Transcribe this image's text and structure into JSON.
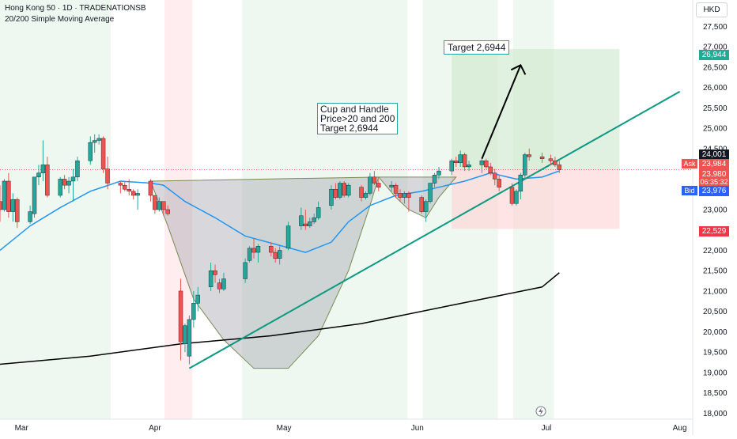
{
  "header": {
    "title": "Hong Kong 50 · 1D · TRADENATIONSB",
    "subtitle": "20/200 Simple Moving Average"
  },
  "currency": "HKD",
  "annotations": {
    "pattern_note": "Cup and Handle\nPrice>20 and 200\nTarget 2,6944",
    "target_note": "Target 2,6944"
  },
  "price_scale": {
    "target_label": "26,944",
    "high_label": "24,001",
    "ask_tag": "Ask",
    "ask_value": "23,984",
    "last_value": "23,980",
    "countdown": "06:35:32",
    "bid_tag": "Bid",
    "bid_value": "23,976",
    "stop_label": "22,529"
  },
  "colors": {
    "up": "#26a69a",
    "down": "#ef5350",
    "sma20": "#2196f3",
    "sma200": "#000000",
    "trendline": "#089981",
    "green_zone": "#e8f5e9",
    "red_zone": "#ffebee"
  },
  "chart_data": {
    "type": "candlestick",
    "title": "Hong Kong 50 · 1D · TRADENATIONSB",
    "subtitle": "20/200 Simple Moving Average",
    "x_ticks": [
      "Mar",
      "Apr",
      "May",
      "Jun",
      "Jul",
      "Aug"
    ],
    "y_ticks": [
      "18,000",
      "18,500",
      "19,000",
      "19,500",
      "20,000",
      "20,500",
      "21,000",
      "21,500",
      "22,000",
      "22,500",
      "23,000",
      "23,500",
      "24,000",
      "24,500",
      "25,000",
      "25,500",
      "26,000",
      "26,500",
      "27,000",
      "27,500"
    ],
    "ylim": [
      17850,
      28150
    ],
    "xlim": [
      "2025-02-24",
      "2025-08-04"
    ],
    "candles": [
      [
        "2025-02-24",
        23200,
        23600,
        22700,
        23000
      ],
      [
        "2025-02-25",
        23000,
        23750,
        22950,
        23700
      ],
      [
        "2025-02-26",
        23700,
        23900,
        22800,
        22950
      ],
      [
        "2025-02-27",
        22950,
        23400,
        22700,
        23250
      ],
      [
        "2025-02-28",
        23250,
        23300,
        22550,
        22700
      ],
      [
        "2025-03-03",
        22700,
        23100,
        22650,
        22950
      ],
      [
        "2025-03-04",
        22900,
        23800,
        22800,
        23800
      ],
      [
        "2025-03-05",
        23800,
        24100,
        23600,
        23900
      ],
      [
        "2025-03-06",
        23900,
        24700,
        23700,
        24100
      ],
      [
        "2025-03-07",
        24100,
        24300,
        23300,
        23350
      ],
      [
        "2025-03-10",
        23350,
        23800,
        23300,
        23750
      ],
      [
        "2025-03-11",
        23750,
        23850,
        23500,
        23600
      ],
      [
        "2025-03-12",
        23600,
        23800,
        23400,
        23700
      ],
      [
        "2025-03-13",
        23700,
        24000,
        23200,
        23800
      ],
      [
        "2025-03-14",
        23800,
        24300,
        23700,
        24200
      ],
      [
        "2025-03-17",
        24200,
        24800,
        24100,
        24650
      ],
      [
        "2025-03-18",
        24650,
        24850,
        24400,
        24700
      ],
      [
        "2025-03-19",
        24700,
        24850,
        24600,
        24750
      ],
      [
        "2025-03-20",
        24750,
        24800,
        23900,
        24000
      ],
      [
        "2025-03-21",
        24000,
        24300,
        23500,
        23650
      ],
      [
        "2025-03-24",
        23650,
        23700,
        23400,
        23600
      ],
      [
        "2025-03-25",
        23600,
        23700,
        23450,
        23500
      ],
      [
        "2025-03-26",
        23500,
        23750,
        23350,
        23450
      ],
      [
        "2025-03-27",
        23450,
        23500,
        23250,
        23350
      ],
      [
        "2025-03-28",
        23350,
        23500,
        23000,
        23400
      ],
      [
        "2025-03-31",
        23700,
        23750,
        23200,
        23350
      ],
      [
        "2025-04-01",
        23350,
        23350,
        22900,
        23000
      ],
      [
        "2025-04-02",
        23000,
        23300,
        22950,
        23200
      ],
      [
        "2025-04-03",
        23200,
        23200,
        22850,
        23000
      ],
      [
        "2025-04-04",
        23000,
        23100,
        22850,
        22900
      ],
      [
        "2025-04-07",
        21000,
        21300,
        19300,
        19750
      ],
      [
        "2025-04-08",
        19700,
        20200,
        19500,
        20150
      ],
      [
        "2025-04-09",
        19400,
        20400,
        19200,
        20300
      ],
      [
        "2025-04-10",
        20300,
        21000,
        20100,
        20700
      ],
      [
        "2025-04-11",
        20700,
        21100,
        20500,
        20900
      ],
      [
        "2025-04-14",
        21100,
        21700,
        21000,
        21500
      ],
      [
        "2025-04-15",
        21500,
        21650,
        21200,
        21400
      ],
      [
        "2025-04-16",
        21200,
        21300,
        20950,
        21050
      ],
      [
        "2025-04-17",
        21050,
        21450,
        21000,
        21300
      ],
      [
        "2025-04-22",
        21300,
        21800,
        21200,
        21700
      ],
      [
        "2025-04-23",
        21750,
        22100,
        21700,
        22050
      ],
      [
        "2025-04-24",
        22050,
        22300,
        21800,
        21950
      ],
      [
        "2025-04-25",
        21950,
        22150,
        21700,
        22100
      ],
      [
        "2025-04-28",
        22100,
        22200,
        21850,
        21950
      ],
      [
        "2025-04-29",
        21950,
        22050,
        21700,
        21800
      ],
      [
        "2025-04-30",
        21800,
        22100,
        21650,
        22000
      ],
      [
        "2025-05-02",
        22050,
        22700,
        22000,
        22600
      ],
      [
        "2025-05-05",
        22600,
        23050,
        22500,
        22850
      ],
      [
        "2025-05-06",
        22650,
        23000,
        22500,
        22600
      ],
      [
        "2025-05-07",
        22600,
        22800,
        22550,
        22700
      ],
      [
        "2025-05-08",
        22700,
        22900,
        22650,
        22800
      ],
      [
        "2025-05-09",
        22800,
        23200,
        22750,
        23050
      ],
      [
        "2025-05-12",
        23100,
        23600,
        23000,
        23500
      ],
      [
        "2025-05-13",
        23500,
        23650,
        23250,
        23300
      ],
      [
        "2025-05-14",
        23300,
        23700,
        23250,
        23650
      ],
      [
        "2025-05-15",
        23650,
        23700,
        23300,
        23350
      ],
      [
        "2025-05-16",
        23350,
        23650,
        23300,
        23600
      ],
      [
        "2025-05-19",
        23550,
        23600,
        23200,
        23300
      ],
      [
        "2025-05-20",
        23300,
        23450,
        23250,
        23400
      ],
      [
        "2025-05-21",
        23400,
        23900,
        23350,
        23800
      ],
      [
        "2025-05-22",
        23800,
        23950,
        23600,
        23650
      ],
      [
        "2025-05-23",
        23650,
        23750,
        23450,
        23550
      ],
      [
        "2025-05-26",
        23550,
        23700,
        23450,
        23600
      ],
      [
        "2025-05-27",
        23600,
        23650,
        23300,
        23400
      ],
      [
        "2025-05-28",
        23400,
        23500,
        23200,
        23300
      ],
      [
        "2025-05-29",
        23300,
        23450,
        23150,
        23400
      ],
      [
        "2025-05-30",
        23400,
        23450,
        22950,
        23300
      ],
      [
        "2025-06-02",
        23300,
        23350,
        22900,
        22950
      ],
      [
        "2025-06-03",
        22950,
        23250,
        22700,
        23200
      ],
      [
        "2025-06-04",
        23200,
        23650,
        23150,
        23650
      ],
      [
        "2025-06-05",
        23650,
        23900,
        23550,
        23850
      ],
      [
        "2025-06-06",
        23850,
        24050,
        23750,
        23950
      ],
      [
        "2025-06-09",
        23950,
        24250,
        23850,
        24200
      ],
      [
        "2025-06-10",
        24200,
        24300,
        24050,
        24150
      ],
      [
        "2025-06-11",
        24150,
        24450,
        24050,
        24350
      ],
      [
        "2025-06-12",
        24350,
        24400,
        23950,
        24050
      ],
      [
        "2025-06-13",
        24050,
        24200,
        23950,
        24100
      ],
      [
        "2025-06-16",
        24100,
        24250,
        23900,
        24200
      ],
      [
        "2025-06-17",
        24200,
        24250,
        24000,
        24050
      ],
      [
        "2025-06-18",
        24050,
        24150,
        23850,
        23900
      ],
      [
        "2025-06-19",
        23900,
        24000,
        23600,
        23750
      ],
      [
        "2025-06-20",
        23750,
        23850,
        23450,
        23550
      ],
      [
        "2025-06-23",
        23550,
        23650,
        23100,
        23150
      ],
      [
        "2025-06-24",
        23150,
        23500,
        23100,
        23450
      ],
      [
        "2025-06-25",
        23450,
        23900,
        23250,
        23850
      ],
      [
        "2025-06-26",
        23850,
        24400,
        23750,
        24350
      ],
      [
        "2025-06-27",
        24350,
        24500,
        24200,
        24300
      ],
      [
        "2025-06-30",
        24300,
        24400,
        24150,
        24250
      ],
      [
        "2025-07-02",
        24250,
        24350,
        24100,
        24200
      ],
      [
        "2025-07-03",
        24200,
        24300,
        24050,
        24100
      ],
      [
        "2025-07-04",
        24100,
        24200,
        23900,
        23980
      ]
    ],
    "series": [
      {
        "name": "20",
        "type": "line",
        "points": [
          [
            "2025-02-24",
            22000
          ],
          [
            "2025-03-03",
            22600
          ],
          [
            "2025-03-10",
            23050
          ],
          [
            "2025-03-17",
            23450
          ],
          [
            "2025-03-24",
            23700
          ],
          [
            "2025-03-31",
            23650
          ],
          [
            "2025-04-03",
            23600
          ],
          [
            "2025-04-08",
            23200
          ],
          [
            "2025-04-15",
            22800
          ],
          [
            "2025-04-22",
            22350
          ],
          [
            "2025-04-29",
            22150
          ],
          [
            "2025-05-06",
            21950
          ],
          [
            "2025-05-12",
            22200
          ],
          [
            "2025-05-16",
            22700
          ],
          [
            "2025-05-21",
            23100
          ],
          [
            "2025-05-27",
            23350
          ],
          [
            "2025-06-02",
            23450
          ],
          [
            "2025-06-06",
            23550
          ],
          [
            "2025-06-12",
            23700
          ],
          [
            "2025-06-18",
            23900
          ],
          [
            "2025-06-24",
            23750
          ],
          [
            "2025-06-30",
            23800
          ],
          [
            "2025-07-04",
            23950
          ]
        ]
      },
      {
        "name": "200",
        "type": "line",
        "points": [
          [
            "2025-02-24",
            19200
          ],
          [
            "2025-03-17",
            19400
          ],
          [
            "2025-04-07",
            19700
          ],
          [
            "2025-04-28",
            19900
          ],
          [
            "2025-05-19",
            20200
          ],
          [
            "2025-06-09",
            20650
          ],
          [
            "2025-06-30",
            21100
          ],
          [
            "2025-07-04",
            21450
          ]
        ]
      }
    ],
    "trendline": [
      [
        "2025-04-09",
        19100
      ],
      [
        "2025-08-01",
        25900
      ]
    ],
    "cup_outline": {
      "description": "cup",
      "points": [
        [
          "2025-03-31",
          23700
        ],
        [
          "2025-04-04",
          22600
        ],
        [
          "2025-04-10",
          20800
        ],
        [
          "2025-04-17",
          19800
        ],
        [
          "2025-04-24",
          19100
        ],
        [
          "2025-05-02",
          19100
        ],
        [
          "2025-05-09",
          19900
        ],
        [
          "2025-05-16",
          21500
        ],
        [
          "2025-05-21",
          23100
        ],
        [
          "2025-05-23",
          23800
        ]
      ]
    },
    "handle_outline": {
      "points": [
        [
          "2025-05-23",
          23800
        ],
        [
          "2025-05-27",
          23300
        ],
        [
          "2025-05-30",
          23000
        ],
        [
          "2025-06-03",
          22800
        ],
        [
          "2025-06-06",
          23300
        ],
        [
          "2025-06-10",
          23800
        ]
      ]
    },
    "position": {
      "entry": 23980,
      "target": 26944,
      "stop": 22529,
      "start": "2025-06-09",
      "end": "2025-07-18"
    },
    "arrow": [
      [
        "2025-06-16",
        24250
      ],
      [
        "2025-06-25",
        26550
      ]
    ],
    "session_bands": {
      "green": [
        [
          "2025-02-24",
          "2025-03-21"
        ],
        [
          "2025-04-22",
          "2025-05-29"
        ],
        [
          "2025-06-03",
          "2025-06-19"
        ],
        [
          "2025-06-24",
          "2025-07-02"
        ]
      ],
      "red": [
        [
          "2025-04-04",
          "2025-04-09"
        ]
      ]
    },
    "grid": false,
    "legend": "none"
  }
}
